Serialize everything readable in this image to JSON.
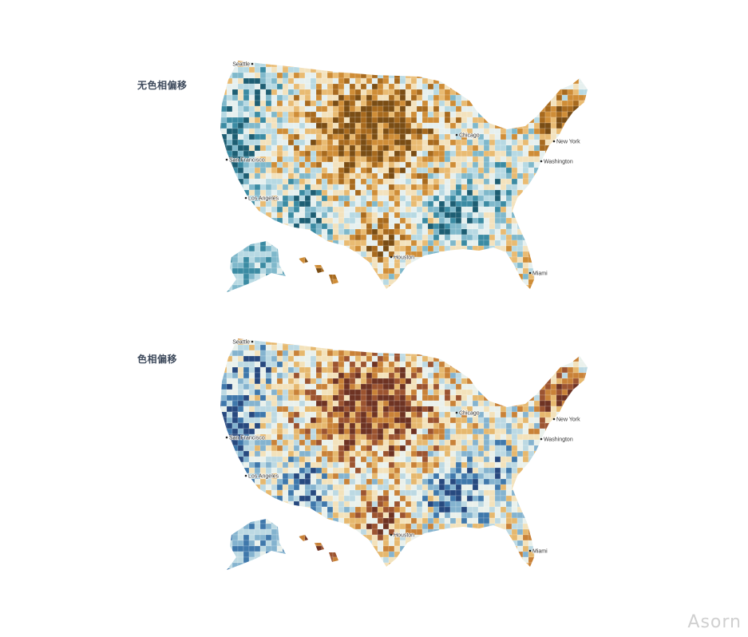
{
  "panels": [
    {
      "id": "top",
      "label": "无色相偏移",
      "palette": [
        "#1d5e73",
        "#3b8ba3",
        "#7fb8cb",
        "#b7d9e3",
        "#e6f0ef",
        "#f3e2bd",
        "#e9bb72",
        "#cf8d37",
        "#a86a1e",
        "#7a4d14"
      ]
    },
    {
      "id": "bottom",
      "label": "色相偏移",
      "palette": [
        "#27497f",
        "#3f78ab",
        "#84b3cf",
        "#bcd9e3",
        "#eaf1ec",
        "#f3e2bb",
        "#e6b86e",
        "#c98238",
        "#9c5430",
        "#6e3323"
      ]
    }
  ],
  "cities": [
    {
      "name": "Seattle"
    },
    {
      "name": "San Francisco"
    },
    {
      "name": "Los Angeles"
    },
    {
      "name": "Chicago"
    },
    {
      "name": "New York"
    },
    {
      "name": "Washington"
    },
    {
      "name": "Houston"
    },
    {
      "name": "Miami"
    }
  ],
  "watermark": "Asorn"
}
